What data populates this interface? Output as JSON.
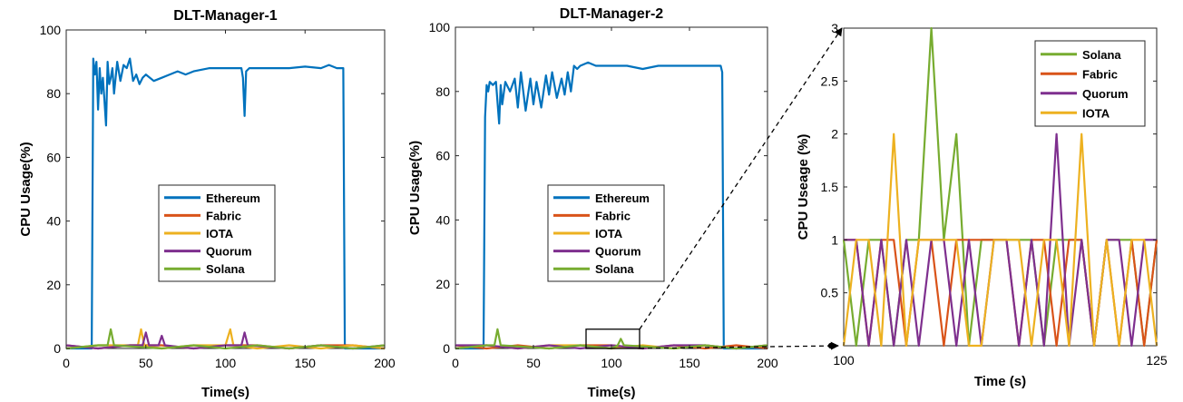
{
  "chart_data": [
    {
      "type": "line",
      "title": "DLT-Manager-1",
      "xlabel": "Time(s)",
      "ylabel": "CPU Usage(%)",
      "xlim": [
        0,
        200
      ],
      "ylim": [
        0,
        100
      ],
      "xticks": [
        "0",
        "50",
        "100",
        "150",
        "200"
      ],
      "yticks": [
        "0",
        "20",
        "40",
        "60",
        "80",
        "100"
      ],
      "legend": "center",
      "series": [
        {
          "name": "Ethereum",
          "color": "#0072BD",
          "x": [
            0,
            14,
            16,
            17,
            18,
            19,
            20,
            21,
            22,
            23,
            24,
            25,
            26,
            27,
            28,
            29,
            30,
            32,
            34,
            36,
            38,
            40,
            42,
            44,
            46,
            48,
            50,
            55,
            60,
            65,
            70,
            75,
            80,
            90,
            100,
            105,
            110,
            111,
            112,
            113,
            115,
            120,
            130,
            140,
            150,
            160,
            165,
            170,
            172,
            174,
            175,
            200
          ],
          "y": [
            0,
            0,
            0,
            91,
            86,
            90,
            75,
            88,
            80,
            85,
            78,
            70,
            90,
            83,
            85,
            88,
            80,
            90,
            84,
            89,
            88,
            91,
            84,
            86,
            83,
            85,
            86,
            84,
            85,
            86,
            87,
            86,
            87,
            88,
            88,
            88,
            88,
            85,
            73,
            87,
            88,
            88,
            88,
            88,
            88.5,
            88,
            89,
            88,
            88,
            88,
            0,
            0
          ]
        },
        {
          "name": "Fabric",
          "color": "#D95319",
          "x": [
            0,
            20,
            40,
            60,
            80,
            100,
            120,
            140,
            160,
            180,
            200
          ],
          "y": [
            1,
            0,
            1,
            1,
            0,
            1,
            1,
            0,
            1,
            1,
            0
          ]
        },
        {
          "name": "IOTA",
          "color": "#EDB120",
          "x": [
            0,
            20,
            45,
            47,
            49,
            60,
            80,
            100,
            103,
            105,
            120,
            140,
            160,
            180,
            200
          ],
          "y": [
            0,
            1,
            1,
            6,
            1,
            0,
            1,
            1,
            6,
            1,
            0,
            1,
            0,
            1,
            0
          ]
        },
        {
          "name": "Quorum",
          "color": "#7E2F8E",
          "x": [
            0,
            20,
            40,
            48,
            50,
            52,
            58,
            60,
            62,
            80,
            100,
            110,
            112,
            114,
            140,
            160,
            180,
            200
          ],
          "y": [
            1,
            0,
            1,
            1,
            5,
            1,
            1,
            4,
            1,
            0,
            1,
            1,
            5,
            1,
            0,
            1,
            0,
            1
          ]
        },
        {
          "name": "Solana",
          "color": "#77AC30",
          "x": [
            0,
            20,
            26,
            28,
            30,
            60,
            80,
            100,
            120,
            140,
            160,
            180,
            200
          ],
          "y": [
            0,
            1,
            1,
            6,
            1,
            0,
            1,
            0,
            1,
            0,
            1,
            0,
            1
          ]
        }
      ]
    },
    {
      "type": "line",
      "title": "DLT-Manager-2",
      "xlabel": "Time(s)",
      "ylabel": "CPU Usage(%)",
      "xlim": [
        0,
        200
      ],
      "ylim": [
        0,
        100
      ],
      "xticks": [
        "0",
        "50",
        "100",
        "150",
        "200"
      ],
      "yticks": [
        "0",
        "20",
        "40",
        "60",
        "80",
        "100"
      ],
      "legend": "center",
      "series": [
        {
          "name": "Ethereum",
          "color": "#0072BD",
          "x": [
            0,
            18,
            19,
            20,
            21,
            22,
            24,
            26,
            28,
            29,
            30,
            32,
            35,
            38,
            40,
            42,
            45,
            48,
            50,
            52,
            55,
            58,
            60,
            62,
            65,
            68,
            70,
            72,
            74,
            76,
            78,
            80,
            85,
            90,
            100,
            110,
            120,
            130,
            140,
            150,
            160,
            170,
            171,
            172,
            200
          ],
          "y": [
            0,
            0,
            72,
            82,
            80,
            83,
            82,
            83,
            70,
            82,
            76,
            83,
            80,
            84,
            75,
            86,
            74,
            84,
            76,
            83,
            75,
            85,
            79,
            86,
            78,
            84,
            79,
            86,
            80,
            88,
            87,
            88,
            89,
            88,
            88,
            88,
            87,
            88,
            88,
            88,
            88,
            88,
            86,
            0,
            0
          ]
        },
        {
          "name": "Fabric",
          "color": "#D95319",
          "x": [
            0,
            20,
            40,
            60,
            80,
            100,
            120,
            140,
            160,
            180,
            200
          ],
          "y": [
            1,
            0,
            1,
            0,
            1,
            1,
            0,
            1,
            0,
            1,
            0
          ]
        },
        {
          "name": "IOTA",
          "color": "#EDB120",
          "x": [
            0,
            20,
            40,
            60,
            80,
            100,
            120,
            140,
            160,
            180,
            200
          ],
          "y": [
            0,
            1,
            0,
            1,
            1,
            0,
            1,
            0,
            1,
            0,
            1
          ]
        },
        {
          "name": "Quorum",
          "color": "#7E2F8E",
          "x": [
            0,
            20,
            40,
            60,
            80,
            100,
            120,
            140,
            160,
            180,
            200
          ],
          "y": [
            1,
            1,
            0,
            1,
            0,
            1,
            0,
            1,
            1,
            0,
            1
          ]
        },
        {
          "name": "Solana",
          "color": "#77AC30",
          "x": [
            0,
            20,
            25,
            27,
            29,
            60,
            80,
            100,
            104,
            106,
            108,
            140,
            160,
            180,
            200
          ],
          "y": [
            0,
            1,
            1,
            6,
            1,
            0,
            1,
            0,
            1,
            3,
            1,
            0,
            1,
            0,
            1
          ]
        }
      ]
    },
    {
      "type": "line",
      "title": "",
      "xlabel": "Time (s)",
      "ylabel": "CPU Useage (%)",
      "xlim": [
        100,
        125
      ],
      "ylim": [
        0,
        3
      ],
      "xticks": [
        "100",
        "125"
      ],
      "yticks": [
        "0.5",
        "1",
        "1.5",
        "2",
        "2.5",
        "3"
      ],
      "legend": "top-right",
      "series": [
        {
          "name": "Solana",
          "color": "#77AC30",
          "x": [
            100,
            101,
            102,
            103,
            104,
            105,
            106,
            107,
            108,
            109,
            110,
            111,
            112,
            113,
            114,
            115,
            116,
            117,
            118,
            119,
            120,
            121,
            122,
            123,
            124,
            125
          ],
          "y": [
            1,
            0,
            1,
            1,
            0,
            1,
            1,
            3,
            1,
            2,
            0,
            1,
            1,
            1,
            1,
            1,
            0,
            1,
            1,
            1,
            0,
            1,
            1,
            1,
            0,
            1
          ]
        },
        {
          "name": "Fabric",
          "color": "#D95319",
          "x": [
            100,
            101,
            102,
            103,
            104,
            105,
            106,
            107,
            108,
            109,
            110,
            111,
            112,
            113,
            114,
            115,
            116,
            117,
            118,
            119,
            120,
            121,
            122,
            123,
            124,
            125
          ],
          "y": [
            1,
            1,
            0,
            1,
            1,
            0,
            1,
            1,
            0,
            1,
            1,
            1,
            1,
            1,
            0,
            1,
            1,
            0,
            1,
            1,
            0,
            1,
            0,
            1,
            0,
            1
          ]
        },
        {
          "name": "Quorum",
          "color": "#7E2F8E",
          "x": [
            100,
            101,
            102,
            103,
            104,
            105,
            106,
            107,
            108,
            109,
            110,
            111,
            112,
            113,
            114,
            115,
            116,
            117,
            118,
            119,
            120,
            121,
            122,
            123,
            124,
            125
          ],
          "y": [
            1,
            1,
            0,
            1,
            0,
            1,
            0,
            1,
            1,
            0,
            1,
            0,
            1,
            1,
            0,
            1,
            0,
            2,
            0,
            1,
            0,
            1,
            1,
            0,
            1,
            1
          ]
        },
        {
          "name": "IOTA",
          "color": "#EDB120",
          "x": [
            100,
            101,
            102,
            103,
            104,
            105,
            106,
            107,
            108,
            109,
            110,
            111,
            112,
            113,
            114,
            115,
            116,
            117,
            118,
            119,
            120,
            121,
            122,
            123,
            124,
            125
          ],
          "y": [
            0,
            1,
            1,
            0,
            2,
            0,
            1,
            1,
            1,
            1,
            0,
            0,
            1,
            1,
            1,
            0,
            1,
            1,
            0,
            2,
            0,
            1,
            0,
            1,
            1,
            0
          ]
        }
      ]
    }
  ]
}
